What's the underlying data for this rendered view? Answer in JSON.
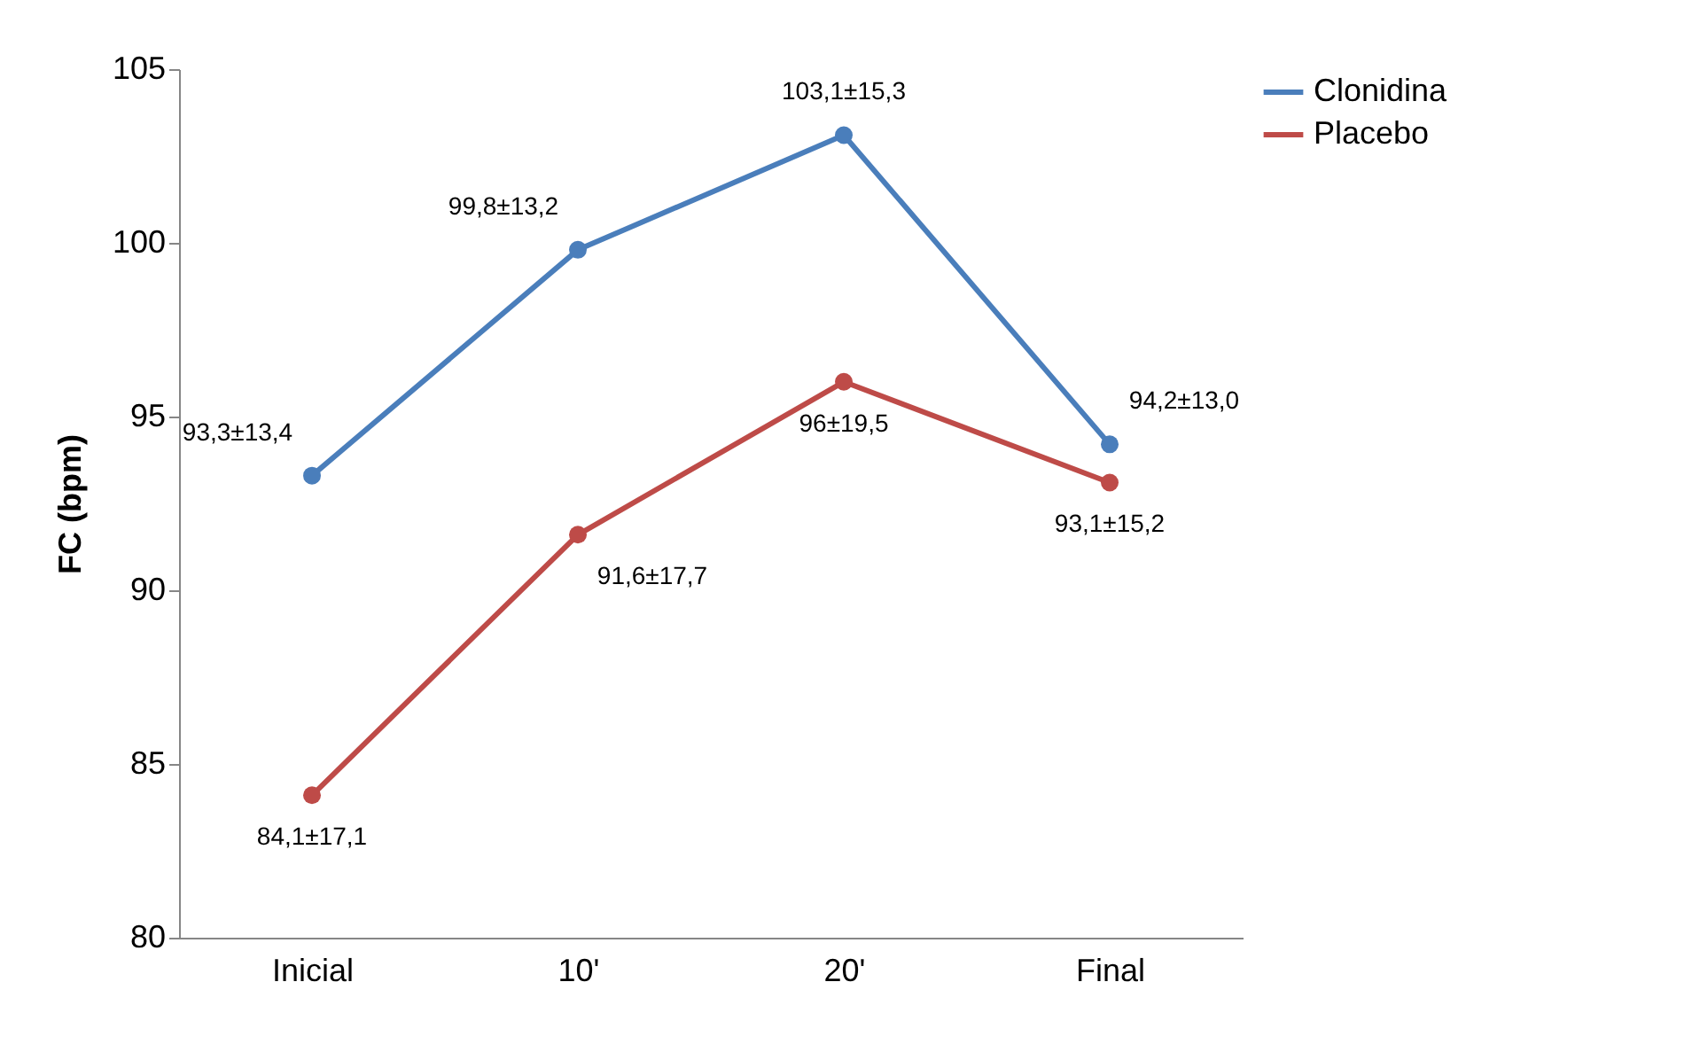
{
  "chart_data": {
    "type": "line",
    "ylabel": "FC (bpm)",
    "categories": [
      "Inicial",
      "10'",
      "20'",
      "Final"
    ],
    "series": [
      {
        "name": "Clonidina",
        "color": "#4a7ebb",
        "values": [
          93.3,
          99.8,
          103.1,
          94.2
        ],
        "value_labels": [
          "93,3±13,4",
          "99,8±13,2",
          "103,1±15,3",
          "94,2±13,0"
        ]
      },
      {
        "name": "Placebo",
        "color": "#be4b48",
        "values": [
          84.1,
          91.6,
          96,
          93.1
        ],
        "value_labels": [
          "84,1±17,1",
          "91,6±17,7",
          "96±19,5",
          "93,1±15,2"
        ]
      }
    ],
    "ylim": [
      80,
      105
    ],
    "yticks": [
      80,
      85,
      90,
      95,
      100,
      105
    ],
    "grid": false,
    "legend": "right",
    "marker": "circle",
    "line_style": "solid"
  }
}
